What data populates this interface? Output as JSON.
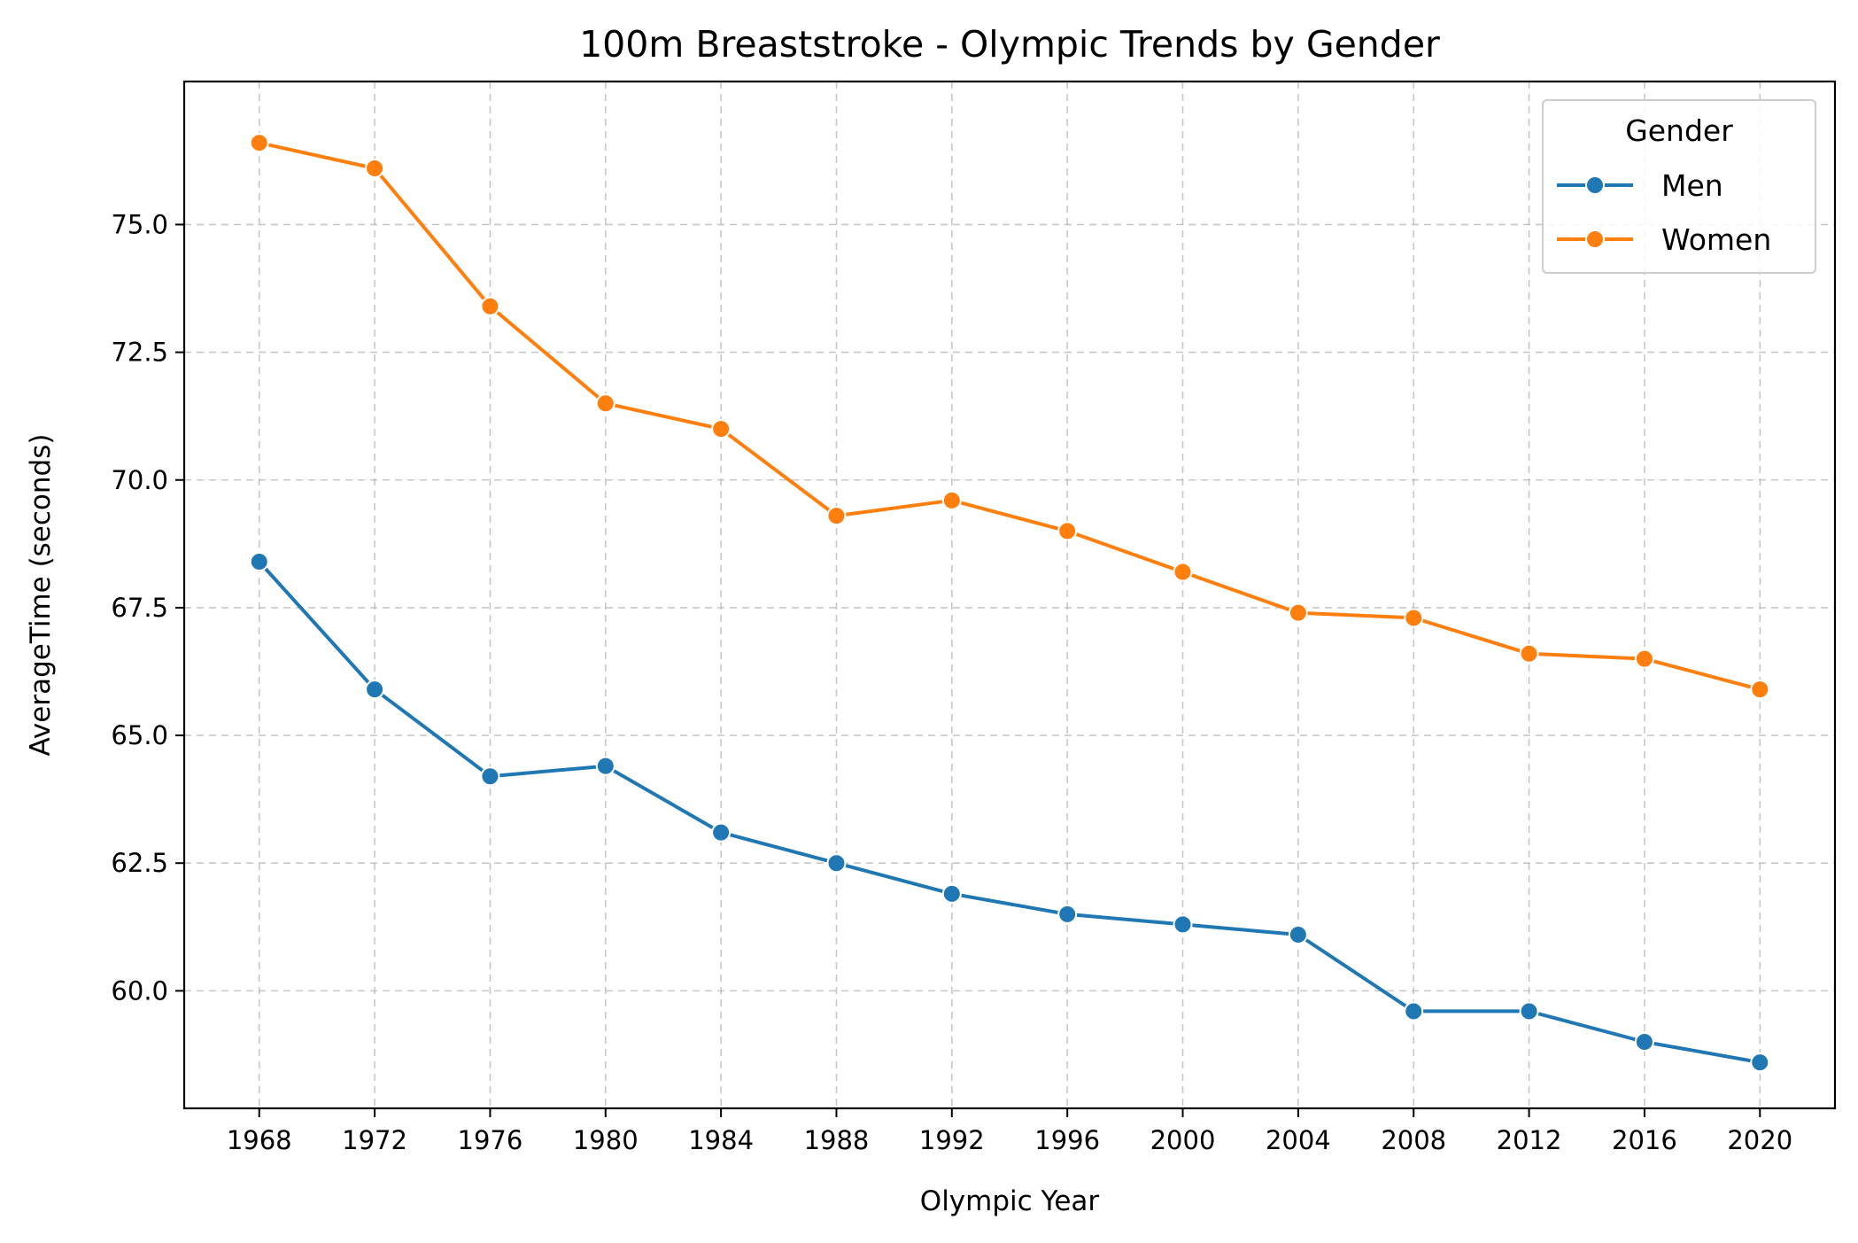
{
  "chart_data": {
    "type": "line",
    "title": "100m Breaststroke - Olympic Trends by Gender",
    "xlabel": "Olympic Year",
    "ylabel": "AverageTime (seconds)",
    "x": [
      1968,
      1972,
      1976,
      1980,
      1984,
      1988,
      1992,
      1996,
      2000,
      2004,
      2008,
      2012,
      2016,
      2020
    ],
    "xlim": [
      1965.4,
      2022.6
    ],
    "ylim": [
      57.7,
      77.8
    ],
    "yticks": [
      60.0,
      62.5,
      65.0,
      67.5,
      70.0,
      72.5,
      75.0
    ],
    "ytick_labels": [
      "60.0",
      "62.5",
      "65.0",
      "67.5",
      "70.0",
      "72.5",
      "75.0"
    ],
    "xtick_labels": [
      "1968",
      "1972",
      "1976",
      "1980",
      "1984",
      "1988",
      "1992",
      "1996",
      "2000",
      "2004",
      "2008",
      "2012",
      "2016",
      "2020"
    ],
    "grid": true,
    "legend": {
      "title": "Gender",
      "placement": "top-right"
    },
    "series": [
      {
        "name": "Men",
        "color": "#1f77b4",
        "values": [
          68.4,
          65.9,
          64.2,
          64.4,
          63.1,
          62.5,
          61.9,
          61.5,
          61.3,
          61.1,
          59.6,
          59.6,
          59.0,
          58.6
        ]
      },
      {
        "name": "Women",
        "color": "#ff7f0e",
        "values": [
          76.6,
          76.1,
          73.4,
          71.5,
          71.0,
          69.3,
          69.6,
          69.0,
          68.2,
          67.4,
          67.3,
          66.6,
          66.5,
          65.9
        ]
      }
    ]
  }
}
